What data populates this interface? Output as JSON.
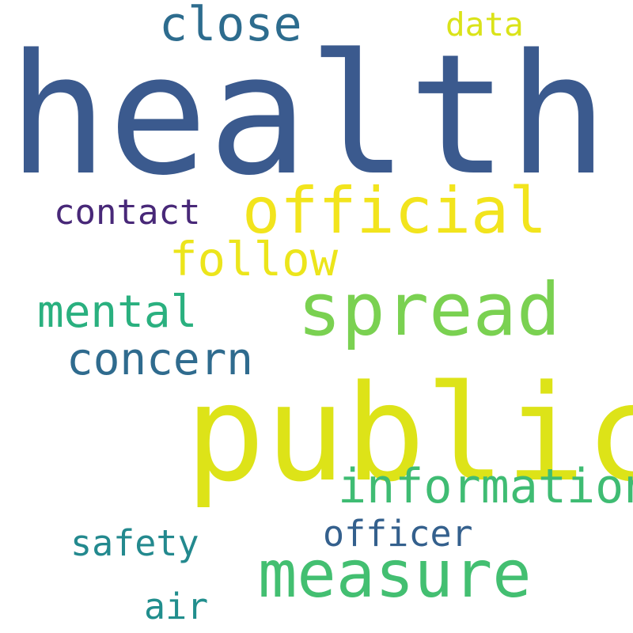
{
  "words": [
    {
      "text": "health",
      "color": "#3b5a8e"
    },
    {
      "text": "public",
      "color": "#dde318"
    },
    {
      "text": "spread",
      "color": "#7ad151"
    },
    {
      "text": "official",
      "color": "#f2e41d"
    },
    {
      "text": "measure",
      "color": "#43bf71"
    },
    {
      "text": "information",
      "color": "#3fbc73"
    },
    {
      "text": "close",
      "color": "#2d6c8e"
    },
    {
      "text": "follow",
      "color": "#ece51b"
    },
    {
      "text": "concern",
      "color": "#2f6b8e"
    },
    {
      "text": "mental",
      "color": "#2ab07f"
    },
    {
      "text": "contact",
      "color": "#482878"
    },
    {
      "text": "officer",
      "color": "#34608d"
    },
    {
      "text": "safety",
      "color": "#23898e"
    },
    {
      "text": "data",
      "color": "#dae319"
    },
    {
      "text": "air",
      "color": "#218e8d"
    }
  ]
}
